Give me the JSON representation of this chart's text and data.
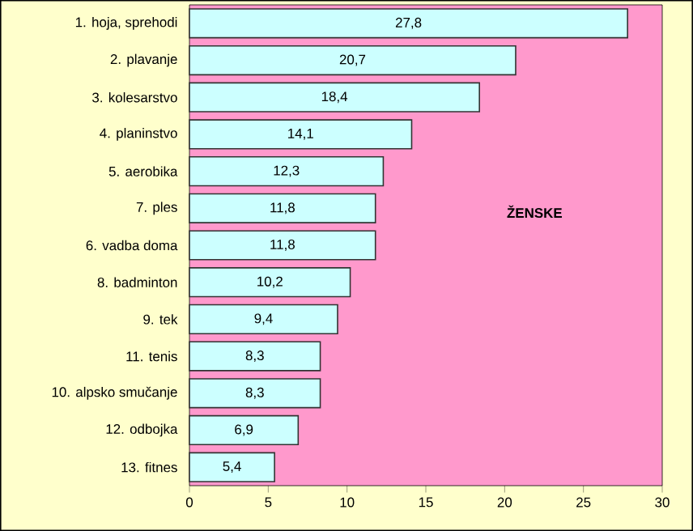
{
  "chart_data": {
    "type": "bar",
    "orientation": "horizontal",
    "categories": [
      "1. hoja, sprehodi",
      "2. plavanje",
      "3. kolesarstvo",
      "4. planinstvo",
      "5. aerobika",
      "7. ples",
      "6. vadba doma",
      "8. badminton",
      "9. tek",
      "11. tenis",
      "10. alpsko smučanje",
      "12. odbojka",
      "13. fitnes"
    ],
    "values": [
      27.8,
      20.7,
      18.4,
      14.1,
      12.3,
      11.8,
      11.8,
      10.2,
      9.4,
      8.3,
      8.3,
      6.9,
      5.4
    ],
    "value_labels": [
      "27,8",
      "20,7",
      "18,4",
      "14,1",
      "12,3",
      "11,8",
      "11,8",
      "10,2",
      "9,4",
      "8,3",
      "8,3",
      "6,9",
      "5,4"
    ],
    "color": "#ccffff",
    "xlim": [
      0,
      30
    ],
    "xticks": [
      0,
      5,
      10,
      15,
      20,
      25,
      30
    ],
    "annotations": [
      "ŽENSKE"
    ]
  }
}
